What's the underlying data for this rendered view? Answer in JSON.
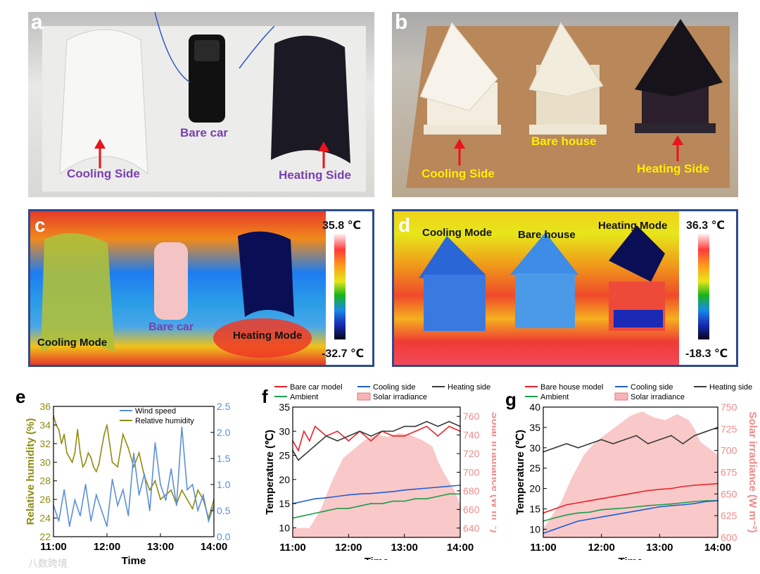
{
  "colors": {
    "purple": "#7a3fb0",
    "yellow": "#ffee00",
    "arrow": "#e8141b",
    "frame": "#2e4a8c",
    "red": "#e8222a",
    "blue": "#1f5fd6",
    "gray": "#3a3a3a",
    "green": "#1a9e4a",
    "pink": "#f7b5b5",
    "olive": "#9a9a1a",
    "wind": "#5b8fd8",
    "rh": "#8e8c10"
  },
  "panel_a": {
    "letter": "a",
    "cooling": "Cooling Side",
    "bare": "Bare car",
    "heating": "Heating Side"
  },
  "panel_b": {
    "letter": "b",
    "cooling": "Cooling Side",
    "bare": "Bare house",
    "heating": "Heating Side"
  },
  "panel_c": {
    "letter": "c",
    "cooling": "Cooling Mode",
    "bare": "Bare car",
    "heating": "Heating Mode",
    "scale_max": "35.8 ℃",
    "scale_min": "-32.7 ℃"
  },
  "panel_d": {
    "letter": "d",
    "cooling": "Cooling Mode",
    "bare": "Bare house",
    "heating": "Heating Mode",
    "scale_max": "36.3 ℃",
    "scale_min": "-18.3 ℃"
  },
  "panel_e": {
    "letter": "e"
  },
  "panel_f": {
    "letter": "f"
  },
  "panel_g": {
    "letter": "g"
  },
  "watermark": "八数跨境",
  "chart_data": [
    {
      "id": "e",
      "type": "line",
      "xlabel": "Time",
      "x_ticks": [
        "11:00",
        "12:00",
        "13:00",
        "14:00"
      ],
      "ylabel": "Relative humidity (%)",
      "ylim": [
        22,
        36
      ],
      "y_ticks": [
        22,
        24,
        26,
        28,
        30,
        32,
        34,
        36
      ],
      "y2label": "Wind speed (m s⁻¹)",
      "y2lim": [
        0,
        2.5
      ],
      "y2_ticks": [
        0.0,
        0.5,
        1.0,
        1.5,
        2.0,
        2.5
      ],
      "legend": [
        "Wind speed",
        "Relative humidity"
      ],
      "series": [
        {
          "name": "Relative humidity",
          "axis": "left",
          "x": [
            0,
            0.05,
            0.1,
            0.15,
            0.2,
            0.25,
            0.3,
            0.35,
            0.4,
            0.45,
            0.5,
            0.55,
            0.6,
            0.65,
            0.7,
            0.75,
            0.8,
            0.85,
            0.9,
            0.95,
            1.0,
            1.1,
            1.2,
            1.3,
            1.4,
            1.5,
            1.6,
            1.7,
            1.8,
            1.9,
            2.0,
            2.1,
            2.2,
            2.3,
            2.4,
            2.5,
            2.6,
            2.7,
            2.8,
            2.9,
            3.0
          ],
          "values": [
            35,
            34,
            33.5,
            32,
            33,
            31,
            30.5,
            30,
            31,
            33.5,
            31,
            29.5,
            30,
            31,
            30.5,
            29.5,
            29,
            29.8,
            31.5,
            33,
            34,
            30,
            29.5,
            33,
            31.5,
            29.5,
            31,
            28.5,
            27,
            28,
            26,
            26.5,
            27,
            25.5,
            27,
            26,
            25,
            27,
            26,
            24,
            26
          ]
        },
        {
          "name": "Wind speed",
          "axis": "right",
          "x": [
            0,
            0.1,
            0.2,
            0.3,
            0.4,
            0.5,
            0.6,
            0.7,
            0.8,
            0.9,
            1.0,
            1.1,
            1.2,
            1.3,
            1.4,
            1.5,
            1.6,
            1.7,
            1.8,
            1.9,
            2.0,
            2.1,
            2.2,
            2.3,
            2.4,
            2.5,
            2.6,
            2.7,
            2.8,
            2.9,
            3.0
          ],
          "values": [
            0.6,
            0.3,
            0.9,
            0.2,
            0.7,
            0.4,
            1.0,
            0.3,
            0.8,
            0.5,
            0.2,
            1.1,
            0.6,
            0.9,
            0.4,
            1.6,
            0.8,
            1.2,
            0.5,
            1.8,
            1.0,
            0.7,
            1.3,
            0.6,
            2.1,
            0.9,
            1.0,
            0.5,
            0.8,
            0.3,
            0.6
          ]
        }
      ]
    },
    {
      "id": "f",
      "type": "line",
      "xlabel": "Time",
      "x_ticks": [
        "11:00",
        "12:00",
        "13:00",
        "14:00"
      ],
      "ylabel": "Temperature (℃)",
      "ylim": [
        8,
        35
      ],
      "y_ticks": [
        10,
        15,
        20,
        25,
        30,
        35
      ],
      "y2label": "Solar irradiance (W m⁻²)",
      "y2lim": [
        630,
        770
      ],
      "y2_ticks": [
        640,
        660,
        680,
        700,
        720,
        740,
        760
      ],
      "legend": [
        "Bare car model",
        "Cooling side",
        "Heating side",
        "Ambient",
        "Solar irradiance"
      ],
      "series": [
        {
          "name": "Solar irradiance",
          "axis": "right",
          "kind": "area",
          "x": [
            0,
            0.3,
            0.5,
            0.7,
            0.9,
            1.1,
            1.3,
            1.5,
            1.7,
            1.9,
            2.1,
            2.3,
            2.5,
            2.6,
            2.7,
            2.8,
            2.9,
            3.0
          ],
          "values": [
            640,
            640,
            660,
            690,
            715,
            725,
            735,
            740,
            738,
            742,
            740,
            735,
            728,
            712,
            700,
            690,
            680,
            665
          ]
        },
        {
          "name": "Bare car model",
          "axis": "left",
          "x": [
            0,
            0.1,
            0.2,
            0.3,
            0.4,
            0.6,
            0.8,
            1.0,
            1.2,
            1.4,
            1.6,
            1.8,
            2.0,
            2.2,
            2.4,
            2.6,
            2.8,
            3.0
          ],
          "values": [
            28,
            26,
            30,
            28,
            31,
            29,
            30,
            28,
            30,
            28,
            30,
            29,
            29,
            30,
            31,
            29,
            31,
            30
          ]
        },
        {
          "name": "Heating side",
          "axis": "left",
          "x": [
            0,
            0.1,
            0.2,
            0.4,
            0.6,
            0.8,
            1.0,
            1.2,
            1.4,
            1.6,
            1.8,
            2.0,
            2.2,
            2.4,
            2.6,
            2.8,
            3.0
          ],
          "values": [
            26,
            24,
            25,
            27,
            29,
            28,
            29,
            30,
            29,
            30,
            30,
            31,
            31,
            32,
            31,
            32,
            31
          ]
        },
        {
          "name": "Cooling side",
          "axis": "left",
          "x": [
            0,
            0.2,
            0.4,
            0.6,
            0.8,
            1.0,
            1.2,
            1.4,
            1.6,
            1.8,
            2.0,
            2.2,
            2.4,
            2.6,
            2.8,
            3.0
          ],
          "values": [
            15,
            15.5,
            16,
            16.2,
            16.5,
            16.8,
            17,
            17.1,
            17.3,
            17.5,
            17.8,
            18,
            18.2,
            18.4,
            18.6,
            18.8
          ]
        },
        {
          "name": "Ambient",
          "axis": "left",
          "x": [
            0,
            0.2,
            0.4,
            0.6,
            0.8,
            1.0,
            1.2,
            1.4,
            1.6,
            1.8,
            2.0,
            2.2,
            2.4,
            2.6,
            2.8,
            3.0
          ],
          "values": [
            12,
            12.5,
            13,
            13.5,
            14,
            14,
            14.5,
            15,
            15,
            15.5,
            15.5,
            16,
            16,
            16.5,
            17,
            17
          ]
        }
      ]
    },
    {
      "id": "g",
      "type": "line",
      "xlabel": "Time",
      "x_ticks": [
        "11:00",
        "12:00",
        "13:00",
        "14:00"
      ],
      "ylabel": "Temperature (℃)",
      "ylim": [
        8,
        40
      ],
      "y_ticks": [
        10,
        15,
        20,
        25,
        30,
        35,
        40
      ],
      "y2label": "Solar irradiance (W m⁻²)",
      "y2lim": [
        600,
        750
      ],
      "y2_ticks": [
        600,
        625,
        650,
        675,
        700,
        725,
        750
      ],
      "legend": [
        "Bare house model",
        "Cooling side",
        "Heating side",
        "Ambient",
        "Solar irradiance"
      ],
      "series": [
        {
          "name": "Solar irradiance",
          "axis": "right",
          "kind": "area",
          "x": [
            0,
            0.3,
            0.5,
            0.7,
            0.9,
            1.1,
            1.3,
            1.5,
            1.7,
            1.9,
            2.1,
            2.3,
            2.5,
            2.6,
            2.7,
            2.8,
            2.9,
            3.0
          ],
          "values": [
            610,
            640,
            670,
            695,
            710,
            720,
            730,
            740,
            745,
            738,
            735,
            742,
            735,
            725,
            710,
            705,
            700,
            695
          ]
        },
        {
          "name": "Heating side",
          "axis": "left",
          "x": [
            0,
            0.2,
            0.4,
            0.6,
            0.8,
            1.0,
            1.2,
            1.4,
            1.6,
            1.8,
            2.0,
            2.2,
            2.4,
            2.6,
            2.8,
            3.0
          ],
          "values": [
            29,
            30,
            31,
            30,
            31,
            32,
            31,
            32,
            33,
            31,
            32,
            33,
            31,
            33,
            34,
            35
          ]
        },
        {
          "name": "Bare house model",
          "axis": "left",
          "x": [
            0,
            0.2,
            0.4,
            0.6,
            0.8,
            1.0,
            1.2,
            1.4,
            1.6,
            1.8,
            2.0,
            2.2,
            2.4,
            2.6,
            2.8,
            3.0
          ],
          "values": [
            14,
            15,
            16,
            16.5,
            17,
            17.5,
            18,
            18.5,
            19,
            19.5,
            19.8,
            20,
            20.5,
            20.8,
            21,
            21.2
          ]
        },
        {
          "name": "Ambient",
          "axis": "left",
          "x": [
            0,
            0.2,
            0.4,
            0.6,
            0.8,
            1.0,
            1.2,
            1.4,
            1.6,
            1.8,
            2.0,
            2.2,
            2.4,
            2.6,
            2.8,
            3.0
          ],
          "values": [
            12,
            12.8,
            13.5,
            14,
            14.2,
            14.8,
            15,
            15.2,
            15.5,
            15.8,
            16,
            16.2,
            16.5,
            16.8,
            17,
            17
          ]
        },
        {
          "name": "Cooling side",
          "axis": "left",
          "x": [
            0,
            0.2,
            0.4,
            0.6,
            0.8,
            1.0,
            1.2,
            1.4,
            1.6,
            1.8,
            2.0,
            2.2,
            2.4,
            2.6,
            2.8,
            3.0
          ],
          "values": [
            9,
            10,
            11,
            12,
            12.5,
            13,
            13.5,
            14,
            14.5,
            15,
            15.5,
            15.8,
            16,
            16.3,
            16.8,
            17
          ]
        }
      ]
    }
  ]
}
